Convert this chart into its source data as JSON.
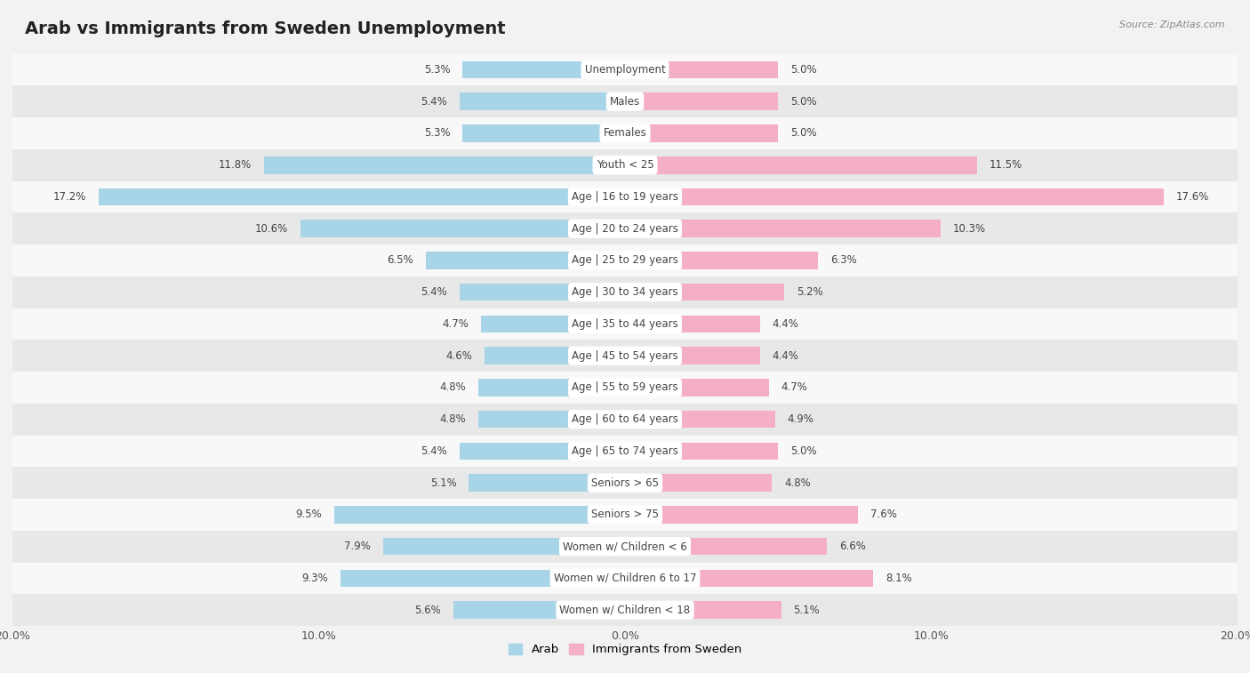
{
  "title": "Arab vs Immigrants from Sweden Unemployment",
  "source": "Source: ZipAtlas.com",
  "categories": [
    "Unemployment",
    "Males",
    "Females",
    "Youth < 25",
    "Age | 16 to 19 years",
    "Age | 20 to 24 years",
    "Age | 25 to 29 years",
    "Age | 30 to 34 years",
    "Age | 35 to 44 years",
    "Age | 45 to 54 years",
    "Age | 55 to 59 years",
    "Age | 60 to 64 years",
    "Age | 65 to 74 years",
    "Seniors > 65",
    "Seniors > 75",
    "Women w/ Children < 6",
    "Women w/ Children 6 to 17",
    "Women w/ Children < 18"
  ],
  "arab_values": [
    5.3,
    5.4,
    5.3,
    11.8,
    17.2,
    10.6,
    6.5,
    5.4,
    4.7,
    4.6,
    4.8,
    4.8,
    5.4,
    5.1,
    9.5,
    7.9,
    9.3,
    5.6
  ],
  "sweden_values": [
    5.0,
    5.0,
    5.0,
    11.5,
    17.6,
    10.3,
    6.3,
    5.2,
    4.4,
    4.4,
    4.7,
    4.9,
    5.0,
    4.8,
    7.6,
    6.6,
    8.1,
    5.1
  ],
  "arab_color": "#a8d4e8",
  "sweden_color": "#f4afc4",
  "axis_max": 20.0,
  "background_color": "#f2f2f2",
  "row_color_light": "#f8f8f8",
  "row_color_dark": "#e8e8e8",
  "title_fontsize": 14,
  "label_fontsize": 8.5,
  "value_fontsize": 8.5,
  "tick_fontsize": 9,
  "legend_labels": [
    "Arab",
    "Immigrants from Sweden"
  ]
}
